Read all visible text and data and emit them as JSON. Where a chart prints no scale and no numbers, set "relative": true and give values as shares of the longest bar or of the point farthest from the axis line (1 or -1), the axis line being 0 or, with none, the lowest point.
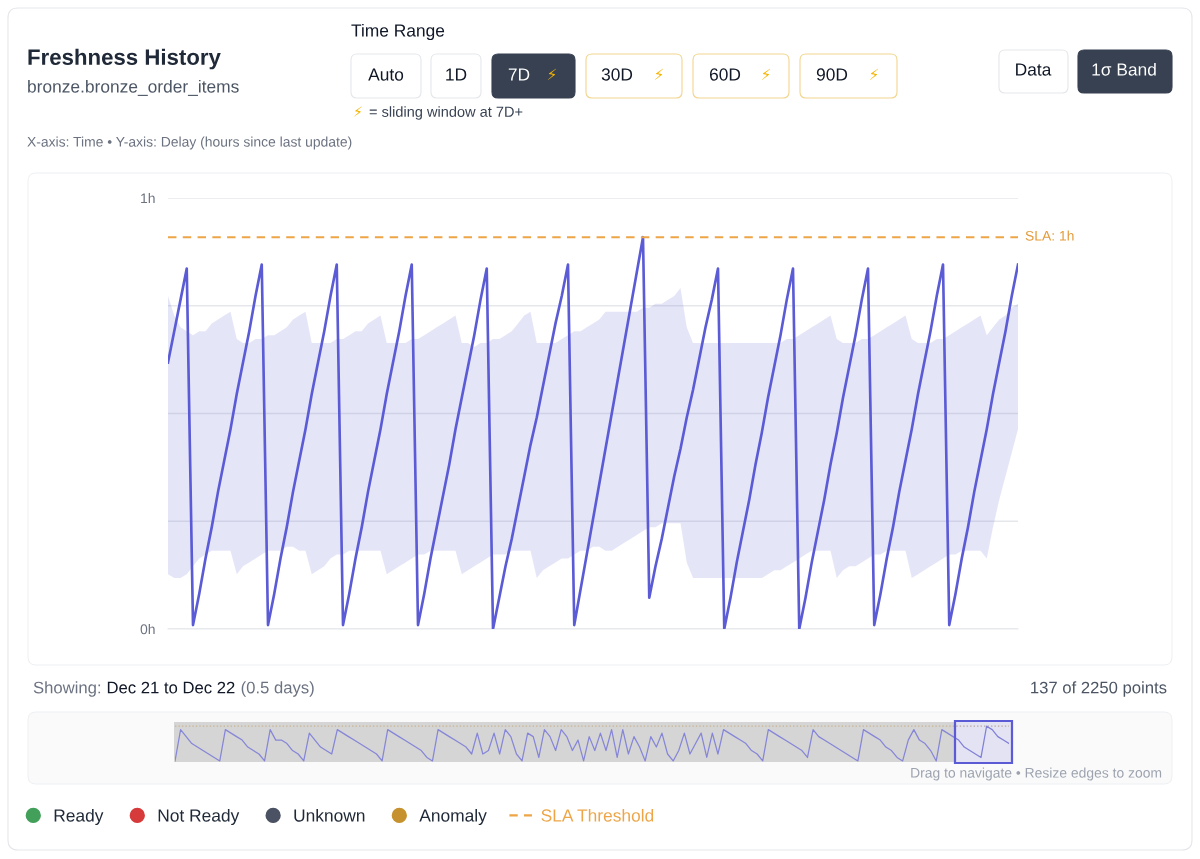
{
  "chart_data": [
    {
      "type": "line",
      "title": "Freshness History",
      "subtitle": "bronze.bronze_order_items",
      "categories": [
        null,
        null,
        null,
        null,
        null,
        null,
        null,
        null,
        null,
        null,
        null,
        null,
        null,
        null,
        null,
        null,
        null,
        null,
        null,
        null,
        null,
        null,
        null,
        null,
        null,
        null,
        null,
        null,
        null,
        null,
        null,
        null,
        null,
        null,
        null,
        null,
        null,
        null,
        null,
        null,
        null,
        null,
        null,
        null,
        null,
        null,
        null,
        null,
        null,
        null,
        null,
        null,
        null,
        null,
        null,
        null,
        null,
        null,
        null,
        null,
        null,
        null,
        null,
        null,
        null,
        null,
        null,
        null,
        null,
        null,
        null,
        null,
        null,
        null,
        null,
        null,
        null,
        null,
        null,
        null,
        null,
        null,
        null,
        null,
        null,
        null,
        null,
        null,
        null,
        null,
        null,
        null,
        null,
        null,
        null,
        null,
        null,
        null,
        null,
        null,
        null,
        null,
        null,
        null,
        null,
        null,
        null,
        null,
        null,
        null,
        null,
        null,
        null,
        null,
        null,
        null,
        null,
        null,
        null,
        null,
        null,
        null,
        null,
        null,
        null,
        null,
        null,
        null,
        null,
        null,
        null,
        null,
        null,
        null,
        null,
        null,
        null
      ],
      "ylim": [
        0,
        1.1
      ],
      "yticks": [
        {
          "value": 0,
          "label": "0h"
        },
        {
          "value": 0.275,
          "label": null
        },
        {
          "value": 0.55,
          "label": null
        },
        {
          "value": 0.825,
          "label": null
        },
        {
          "value": 1.1,
          "label": "1h"
        }
      ],
      "grid": "y",
      "legend": "bottom",
      "tick_labels": "y",
      "series": [
        {
          "color": "#5b5bd6",
          "values": [
            0.68,
            0.76,
            0.84,
            0.92,
            0.01,
            0.09,
            0.18,
            0.26,
            0.35,
            0.43,
            0.51,
            0.6,
            0.68,
            0.76,
            0.85,
            0.93,
            0.01,
            0.09,
            0.18,
            0.26,
            0.35,
            0.43,
            0.51,
            0.6,
            0.68,
            0.76,
            0.85,
            0.93,
            0.01,
            0.09,
            0.18,
            0.26,
            0.35,
            0.43,
            0.51,
            0.6,
            0.68,
            0.76,
            0.85,
            0.93,
            0.01,
            0.09,
            0.18,
            0.26,
            0.34,
            0.42,
            0.51,
            0.59,
            0.67,
            0.75,
            0.84,
            0.92,
            0,
            0.08,
            0.16,
            0.23,
            0.31,
            0.39,
            0.47,
            0.54,
            0.62,
            0.7,
            0.78,
            0.85,
            0.93,
            0.01,
            0.1,
            0.19,
            0.28,
            0.37,
            0.46,
            0.55,
            0.64,
            0.73,
            0.82,
            0.91,
            1.0,
            0.08,
            0.16,
            0.23,
            0.31,
            0.39,
            0.46,
            0.54,
            0.61,
            0.69,
            0.77,
            0.84,
            0.92,
            0,
            0.08,
            0.17,
            0.25,
            0.33,
            0.42,
            0.5,
            0.59,
            0.67,
            0.75,
            0.84,
            0.92,
            0,
            0.08,
            0.17,
            0.25,
            0.33,
            0.42,
            0.5,
            0.59,
            0.67,
            0.75,
            0.84,
            0.92,
            0.01,
            0.09,
            0.18,
            0.26,
            0.35,
            0.43,
            0.51,
            0.6,
            0.68,
            0.76,
            0.85,
            0.93,
            0.01,
            0.09,
            0.18,
            0.26,
            0.35,
            0.43,
            0.51,
            0.6,
            0.68,
            0.76,
            0.85,
            0.93
          ],
          "upper": [
            0.85,
            0.8,
            0.77,
            0.76,
            0.75,
            0.76,
            0.76,
            0.78,
            0.79,
            0.8,
            0.81,
            0.74,
            0.73,
            0.73,
            0.74,
            0.74,
            0.75,
            0.75,
            0.76,
            0.77,
            0.79,
            0.8,
            0.81,
            0.73,
            0.73,
            0.73,
            0.73,
            0.74,
            0.74,
            0.75,
            0.76,
            0.76,
            0.78,
            0.79,
            0.8,
            0.73,
            0.73,
            0.73,
            0.73,
            0.74,
            0.74,
            0.75,
            0.76,
            0.77,
            0.78,
            0.79,
            0.8,
            0.73,
            0.73,
            0.72,
            0.73,
            0.73,
            0.74,
            0.74,
            0.75,
            0.76,
            0.78,
            0.8,
            0.81,
            0.73,
            0.73,
            0.73,
            0.73,
            0.74,
            0.75,
            0.76,
            0.76,
            0.77,
            0.78,
            0.79,
            0.81,
            0.81,
            0.81,
            0.81,
            0.81,
            0.81,
            0.82,
            0.82,
            0.83,
            0.83,
            0.84,
            0.85,
            0.87,
            0.77,
            0.73,
            0.73,
            0.73,
            0.73,
            0.73,
            0.73,
            0.73,
            0.73,
            0.73,
            0.73,
            0.73,
            0.73,
            0.73,
            0.73,
            0.73,
            0.74,
            0.74,
            0.75,
            0.76,
            0.77,
            0.78,
            0.79,
            0.8,
            0.74,
            0.73,
            0.73,
            0.73,
            0.74,
            0.74,
            0.75,
            0.76,
            0.77,
            0.78,
            0.79,
            0.8,
            0.74,
            0.73,
            0.73,
            0.73,
            0.74,
            0.74,
            0.75,
            0.76,
            0.77,
            0.78,
            0.79,
            0.8,
            0.75,
            0.77,
            0.79,
            0.8,
            0.82,
            0.83
          ],
          "lower": [
            0.14,
            0.13,
            0.13,
            0.14,
            0.16,
            0.18,
            0.19,
            0.2,
            0.2,
            0.2,
            0.2,
            0.14,
            0.16,
            0.17,
            0.18,
            0.19,
            0.2,
            0.2,
            0.2,
            0.21,
            0.21,
            0.2,
            0.2,
            0.14,
            0.15,
            0.16,
            0.18,
            0.19,
            0.19,
            0.2,
            0.2,
            0.2,
            0.2,
            0.2,
            0.2,
            0.14,
            0.15,
            0.16,
            0.17,
            0.18,
            0.19,
            0.19,
            0.2,
            0.2,
            0.2,
            0.2,
            0.2,
            0.14,
            0.15,
            0.16,
            0.17,
            0.18,
            0.19,
            0.19,
            0.19,
            0.2,
            0.2,
            0.2,
            0.2,
            0.13,
            0.15,
            0.16,
            0.17,
            0.18,
            0.18,
            0.19,
            0.2,
            0.2,
            0.21,
            0.21,
            0.2,
            0.2,
            0.21,
            0.22,
            0.23,
            0.24,
            0.25,
            0.26,
            0.26,
            0.27,
            0.27,
            0.27,
            0.27,
            0.17,
            0.13,
            0.13,
            0.13,
            0.13,
            0.13,
            0.13,
            0.13,
            0.13,
            0.13,
            0.13,
            0.13,
            0.13,
            0.14,
            0.15,
            0.15,
            0.16,
            0.17,
            0.18,
            0.19,
            0.2,
            0.2,
            0.2,
            0.2,
            0.13,
            0.15,
            0.16,
            0.16,
            0.17,
            0.18,
            0.19,
            0.19,
            0.2,
            0.2,
            0.2,
            0.2,
            0.13,
            0.14,
            0.15,
            0.16,
            0.17,
            0.18,
            0.19,
            0.19,
            0.2,
            0.2,
            0.2,
            0.2,
            0.18,
            0.26,
            0.33,
            0.39,
            0.45,
            0.51
          ]
        },
        {
          "name": "Ready",
          "type": "scatter",
          "color": "#43a05a",
          "values": [
            null,
            null,
            null,
            null,
            null,
            null,
            null,
            null,
            null,
            null,
            null,
            null,
            null,
            null,
            null,
            null,
            null,
            null,
            null,
            null,
            null,
            null,
            null,
            null,
            null,
            null,
            null,
            null,
            null,
            null,
            null,
            null,
            null,
            null,
            null,
            null,
            null,
            null,
            null,
            null,
            null,
            null,
            null,
            null,
            null,
            null,
            null,
            null,
            null,
            null,
            null,
            null,
            null,
            null,
            null,
            null,
            null,
            null,
            null,
            null,
            null,
            null,
            null,
            null,
            null,
            null,
            null,
            null,
            null,
            null,
            null,
            null,
            null,
            null,
            null,
            null,
            null,
            null,
            null,
            null,
            null,
            null,
            null,
            null,
            null,
            null,
            null,
            null,
            null,
            null,
            null,
            null,
            null,
            null,
            null,
            null,
            null,
            null,
            null,
            null,
            null,
            null,
            null,
            null,
            null,
            null,
            null,
            null,
            null,
            null,
            null,
            null,
            null,
            null,
            null,
            null,
            null,
            null,
            null,
            null,
            null,
            null,
            null,
            null,
            null,
            null,
            null,
            null,
            null,
            null,
            null,
            null,
            null,
            null,
            null,
            null,
            null
          ]
        },
        {
          "name": "Not Ready",
          "type": "scatter",
          "color": "#d63a3a",
          "values": [
            null,
            null,
            null,
            null,
            null,
            null,
            null,
            null,
            null,
            null,
            null,
            null,
            null,
            null,
            null,
            null,
            null,
            null,
            null,
            null,
            null,
            null,
            null,
            null,
            null,
            null,
            null,
            null,
            null,
            null,
            null,
            null,
            null,
            null,
            null,
            null,
            null,
            null,
            null,
            null,
            null,
            null,
            null,
            null,
            null,
            null,
            null,
            null,
            null,
            null,
            null,
            null,
            null,
            null,
            null,
            null,
            null,
            null,
            null,
            null,
            null,
            null,
            null,
            null,
            null,
            null,
            null,
            null,
            null,
            null,
            null,
            null,
            null,
            null,
            null,
            null,
            null,
            null,
            null,
            null,
            null,
            null,
            null,
            null,
            null,
            null,
            null,
            null,
            null,
            null,
            null,
            null,
            null,
            null,
            null,
            null,
            null,
            null,
            null,
            null,
            null,
            null,
            null,
            null,
            null,
            null,
            null,
            null,
            null,
            null,
            null,
            null,
            null,
            null,
            null,
            null,
            null,
            null,
            null,
            null,
            null,
            null,
            null,
            null,
            null,
            null,
            null,
            null,
            null,
            null,
            null,
            null,
            null,
            null,
            null,
            null,
            null
          ]
        },
        {
          "name": "Unknown",
          "type": "scatter",
          "color": "#4a5263",
          "values": [
            null,
            null,
            null,
            null,
            null,
            null,
            null,
            null,
            null,
            null,
            null,
            null,
            null,
            null,
            null,
            null,
            null,
            null,
            null,
            null,
            null,
            null,
            null,
            null,
            null,
            null,
            null,
            null,
            null,
            null,
            null,
            null,
            null,
            null,
            null,
            null,
            null,
            null,
            null,
            null,
            null,
            null,
            null,
            null,
            null,
            null,
            null,
            null,
            null,
            null,
            null,
            null,
            null,
            null,
            null,
            null,
            null,
            null,
            null,
            null,
            null,
            null,
            null,
            null,
            null,
            null,
            null,
            null,
            null,
            null,
            null,
            null,
            null,
            null,
            null,
            null,
            null,
            null,
            null,
            null,
            null,
            null,
            null,
            null,
            null,
            null,
            null,
            null,
            null,
            null,
            null,
            null,
            null,
            null,
            null,
            null,
            null,
            null,
            null,
            null,
            null,
            null,
            null,
            null,
            null,
            null,
            null,
            null,
            null,
            null,
            null,
            null,
            null,
            null,
            null,
            null,
            null,
            null,
            null,
            null,
            null,
            null,
            null,
            null,
            null,
            null,
            null,
            null,
            null,
            null,
            null,
            null,
            null,
            null,
            null,
            null,
            null
          ]
        },
        {
          "name": "Anomaly",
          "type": "scatter",
          "color": "#c6922f",
          "values": [
            null,
            null,
            null,
            null,
            null,
            null,
            null,
            null,
            null,
            null,
            null,
            null,
            null,
            null,
            null,
            null,
            null,
            null,
            null,
            null,
            null,
            null,
            null,
            null,
            null,
            null,
            null,
            null,
            null,
            null,
            null,
            null,
            null,
            null,
            null,
            null,
            null,
            null,
            null,
            null,
            null,
            null,
            null,
            null,
            null,
            null,
            null,
            null,
            null,
            null,
            null,
            null,
            null,
            null,
            null,
            null,
            null,
            null,
            null,
            null,
            null,
            null,
            null,
            null,
            null,
            null,
            null,
            null,
            null,
            null,
            null,
            null,
            null,
            null,
            null,
            null,
            null,
            null,
            null,
            null,
            null,
            null,
            null,
            null,
            null,
            null,
            null,
            null,
            null,
            null,
            null,
            null,
            null,
            null,
            null,
            null,
            null,
            null,
            null,
            null,
            null,
            null,
            null,
            null,
            null,
            null,
            null,
            null,
            null,
            null,
            null,
            null,
            null,
            null,
            null,
            null,
            null,
            null,
            null,
            null,
            null,
            null,
            null,
            null,
            null,
            null,
            null,
            null,
            null,
            null,
            null,
            null,
            null,
            null,
            null,
            null,
            null
          ]
        },
        {
          "name": "SLA Threshold",
          "type": "line",
          "color": "#eda547",
          "line_style": "dashed",
          "values": [
            1,
            1,
            1,
            1,
            1,
            1,
            1,
            1,
            1,
            1,
            1,
            1,
            1,
            1,
            1,
            1,
            1,
            1,
            1,
            1,
            1,
            1,
            1,
            1,
            1,
            1,
            1,
            1,
            1,
            1,
            1,
            1,
            1,
            1,
            1,
            1,
            1,
            1,
            1,
            1,
            1,
            1,
            1,
            1,
            1,
            1,
            1,
            1,
            1,
            1,
            1,
            1,
            1,
            1,
            1,
            1,
            1,
            1,
            1,
            1,
            1,
            1,
            1,
            1,
            1,
            1,
            1,
            1,
            1,
            1,
            1,
            1,
            1,
            1,
            1,
            1,
            1,
            1,
            1,
            1,
            1,
            1,
            1,
            1,
            1,
            1,
            1,
            1,
            1,
            1,
            1,
            1,
            1,
            1,
            1,
            1,
            1,
            1,
            1,
            1,
            1,
            1,
            1,
            1,
            1,
            1,
            1,
            1,
            1,
            1,
            1,
            1,
            1,
            1,
            1,
            1,
            1,
            1,
            1,
            1,
            1,
            1,
            1,
            1,
            1,
            1,
            1,
            1,
            1,
            1,
            1,
            1,
            1,
            1,
            1,
            1,
            1
          ]
        }
      ],
      "annotations": [
        "Time Range",
        "Auto",
        "1D",
        "7D",
        "⚡",
        "30D",
        "⚡",
        "60D",
        "⚡",
        "90D",
        "⚡",
        "⚡",
        "= sliding window at 7D+",
        "Data",
        "1σ Band",
        "X-axis: Time • Y-axis: Delay (hours since last update)",
        "SLA: 1h",
        "Showing:",
        "Dec 21 to Dec 22",
        "(0.5 days)",
        "137 of 2250 points"
      ]
    },
    {
      "type": "line",
      "relative": true,
      "categories": [
        null,
        null,
        null,
        null,
        null,
        null,
        null,
        null,
        null,
        null,
        null,
        null,
        null,
        null,
        null,
        null,
        null,
        null,
        null,
        null,
        null,
        null,
        null,
        null,
        null,
        null,
        null,
        null,
        null,
        null,
        null,
        null,
        null,
        null,
        null,
        null,
        null,
        null,
        null,
        null,
        null,
        null,
        null,
        null,
        null,
        null,
        null,
        null,
        null,
        null,
        null,
        null,
        null,
        null,
        null,
        null,
        null,
        null,
        null,
        null,
        null,
        null,
        null,
        null,
        null,
        null,
        null,
        null,
        null,
        null,
        null,
        null,
        null,
        null,
        null,
        null,
        null,
        null,
        null,
        null,
        null,
        null,
        null,
        null,
        null,
        null,
        null,
        null,
        null,
        null,
        null,
        null,
        null,
        null,
        null,
        null,
        null,
        null,
        null,
        null,
        null,
        null,
        null,
        null,
        null,
        null,
        null,
        null,
        null,
        null,
        null,
        null,
        null,
        null,
        null,
        null,
        null,
        null,
        null,
        null,
        null,
        null,
        null,
        null,
        null,
        null,
        null,
        null,
        null,
        null,
        null,
        null,
        null,
        null,
        null,
        null,
        null,
        null,
        null,
        null,
        null,
        null,
        null,
        null,
        null,
        null,
        null,
        null,
        null,
        null
      ],
      "series": [
        {
          "color": "#8686d8",
          "values": [
            0,
            0.9,
            0.7,
            0.5,
            0.4,
            0.3,
            0.2,
            0.1,
            0,
            0.9,
            0.8,
            0.7,
            0.6,
            0.4,
            0.3,
            0.2,
            0,
            0.9,
            0.6,
            0.6,
            0.5,
            0.3,
            0.2,
            0,
            0.8,
            0.6,
            0.4,
            0.3,
            0.2,
            0.9,
            0.8,
            0.7,
            0.6,
            0.5,
            0.4,
            0.3,
            0.2,
            0,
            0.9,
            0.8,
            0.7,
            0.6,
            0.5,
            0.4,
            0.3,
            0.1,
            0,
            0.9,
            0.8,
            0.7,
            0.6,
            0.5,
            0.4,
            0.2,
            0.8,
            0.2,
            0.3,
            0.8,
            0.2,
            0.9,
            0.7,
            0.2,
            0,
            0.8,
            0.7,
            0.1,
            0.9,
            0.7,
            0.3,
            0.9,
            0.7,
            0.3,
            0.6,
            0,
            0.7,
            0.3,
            0.8,
            0.3,
            0.9,
            0.1,
            0.9,
            0.2,
            0.7,
            0.4,
            0,
            0.7,
            0.4,
            0.8,
            0.2,
            0,
            0.3,
            0.8,
            0.2,
            0.5,
            0.8,
            0.1,
            0.8,
            0.2,
            0.9,
            0.8,
            0.7,
            0.6,
            0.5,
            0.3,
            0.2,
            0,
            0.9,
            0.8,
            0.7,
            0.6,
            0.5,
            0.4,
            0.3,
            0.1,
            0.9,
            0.7,
            0.6,
            0.5,
            0.4,
            0.3,
            0.2,
            0.1,
            0,
            0.9,
            0.8,
            0.7,
            0.6,
            0.4,
            0.3,
            0.1,
            0,
            0.6,
            0.9,
            0.6,
            0.5,
            0.3,
            0,
            0.9,
            0.8,
            0.7,
            0.6,
            0.4,
            0.3,
            0.2,
            0.1,
            1,
            0.9,
            0.7,
            0.6,
            0.5
          ]
        }
      ],
      "ref_lines": [
        {
          "axis": "y",
          "value": 1,
          "color": "#c9b48c",
          "line_style": "dotted"
        }
      ],
      "annotations": [
        "Drag to navigate • Resize edges to zoom"
      ]
    }
  ]
}
